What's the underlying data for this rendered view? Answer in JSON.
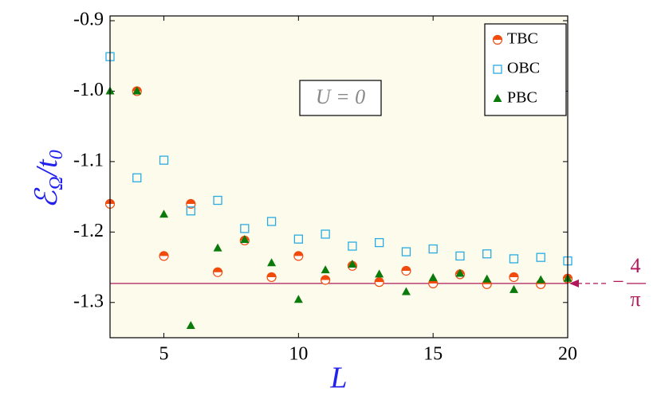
{
  "chart_data": {
    "type": "scatter",
    "x_label": "L",
    "y_label": [
      "ℰ",
      "Ω",
      "/t",
      "0"
    ],
    "annotation": "U = 0",
    "hline": {
      "value": -1.273,
      "color": "#b0185a",
      "label": {
        "sign": "−",
        "numerator": "4",
        "denominator": "π"
      }
    },
    "x": [
      3,
      4,
      5,
      6,
      7,
      8,
      9,
      10,
      11,
      12,
      13,
      14,
      15,
      16,
      17,
      18,
      19,
      20
    ],
    "series": [
      {
        "name": "TBC",
        "marker": "half-circle",
        "color": "#f04a0c",
        "values": [
          -1.16,
          -1.0,
          -1.234,
          -1.16,
          -1.257,
          -1.212,
          -1.264,
          -1.234,
          -1.268,
          -1.248,
          -1.271,
          -1.255,
          -1.273,
          -1.26,
          -1.274,
          -1.264,
          -1.274,
          -1.266
        ]
      },
      {
        "name": "OBC",
        "marker": "square",
        "color": "#29abe2",
        "values": [
          -0.951,
          -1.123,
          -1.098,
          -1.17,
          -1.155,
          -1.195,
          -1.185,
          -1.21,
          -1.203,
          -1.22,
          -1.215,
          -1.228,
          -1.224,
          -1.234,
          -1.231,
          -1.238,
          -1.236,
          -1.241
        ]
      },
      {
        "name": "PBC",
        "marker": "triangle",
        "color": "#0a7a0a",
        "values": [
          -1.0,
          -1.0,
          -1.175,
          -1.333,
          -1.223,
          -1.211,
          -1.244,
          -1.296,
          -1.254,
          -1.246,
          -1.26,
          -1.285,
          -1.265,
          -1.259,
          -1.267,
          -1.282,
          -1.268,
          -1.266
        ]
      }
    ],
    "xlim": [
      3,
      20
    ],
    "xticks": [
      5,
      10,
      15,
      20
    ],
    "ylim": [
      -1.35,
      -0.9
    ],
    "yticks": [
      -0.9,
      {
        "value": -1,
        "label": "-1.0"
      },
      -1.1,
      -1.2,
      -1.3
    ],
    "legend": "upper right",
    "background": "#fdfcec",
    "label_color": "#2222ee"
  }
}
